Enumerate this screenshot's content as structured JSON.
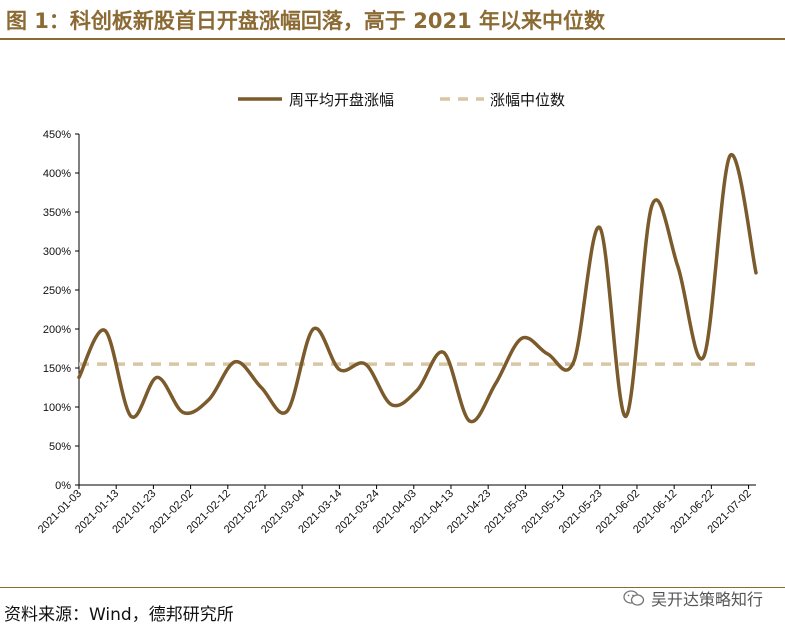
{
  "page": {
    "title": "图 1：科创板新股首日开盘涨幅回落，高于 2021 年以来中位数",
    "source": "资料来源：Wind，德邦研究所",
    "watermark": "吴开达策略知行"
  },
  "colors": {
    "line": "#7b5a2c",
    "median": "#d8c6a4",
    "title": "#8b6a33",
    "axis": "#000000"
  },
  "chart_data": {
    "type": "line",
    "title": "",
    "xlabel": "",
    "ylabel": "",
    "ylim": [
      0,
      450
    ],
    "y_ticks": [
      0,
      50,
      100,
      150,
      200,
      250,
      300,
      350,
      400,
      450
    ],
    "y_tick_labels": [
      "0%",
      "50%",
      "100%",
      "150%",
      "200%",
      "250%",
      "300%",
      "350%",
      "400%",
      "450%"
    ],
    "x_range": [
      "2021-01-03",
      "2021-07-04"
    ],
    "x_ticks": [
      "2021-01-03",
      "2021-01-13",
      "2021-01-23",
      "2021-02-02",
      "2021-02-12",
      "2021-02-22",
      "2021-03-04",
      "2021-03-14",
      "2021-03-24",
      "2021-04-03",
      "2021-04-13",
      "2021-04-23",
      "2021-05-03",
      "2021-05-13",
      "2021-05-23",
      "2021-06-02",
      "2021-06-12",
      "2021-06-22",
      "2021-07-02"
    ],
    "legend_position": "top-center",
    "grid": false,
    "series": [
      {
        "name": "周平均开盘涨幅",
        "style": "solid",
        "x": [
          "2021-01-03",
          "2021-01-10",
          "2021-01-17",
          "2021-01-24",
          "2021-01-31",
          "2021-02-07",
          "2021-02-14",
          "2021-02-21",
          "2021-02-28",
          "2021-03-07",
          "2021-03-14",
          "2021-03-21",
          "2021-03-28",
          "2021-04-04",
          "2021-04-11",
          "2021-04-18",
          "2021-04-25",
          "2021-05-02",
          "2021-05-09",
          "2021-05-16",
          "2021-05-23",
          "2021-05-30",
          "2021-06-06",
          "2021-06-13",
          "2021-06-20",
          "2021-06-27",
          "2021-07-04"
        ],
        "values": [
          138,
          198,
          88,
          138,
          93,
          110,
          158,
          125,
          95,
          200,
          148,
          155,
          103,
          122,
          170,
          82,
          130,
          188,
          168,
          158,
          330,
          88,
          358,
          280,
          165,
          422,
          272
        ]
      },
      {
        "name": "涨幅中位数",
        "style": "dashed",
        "x": [
          "2021-01-03",
          "2021-07-04"
        ],
        "values": [
          155,
          155
        ]
      }
    ]
  }
}
